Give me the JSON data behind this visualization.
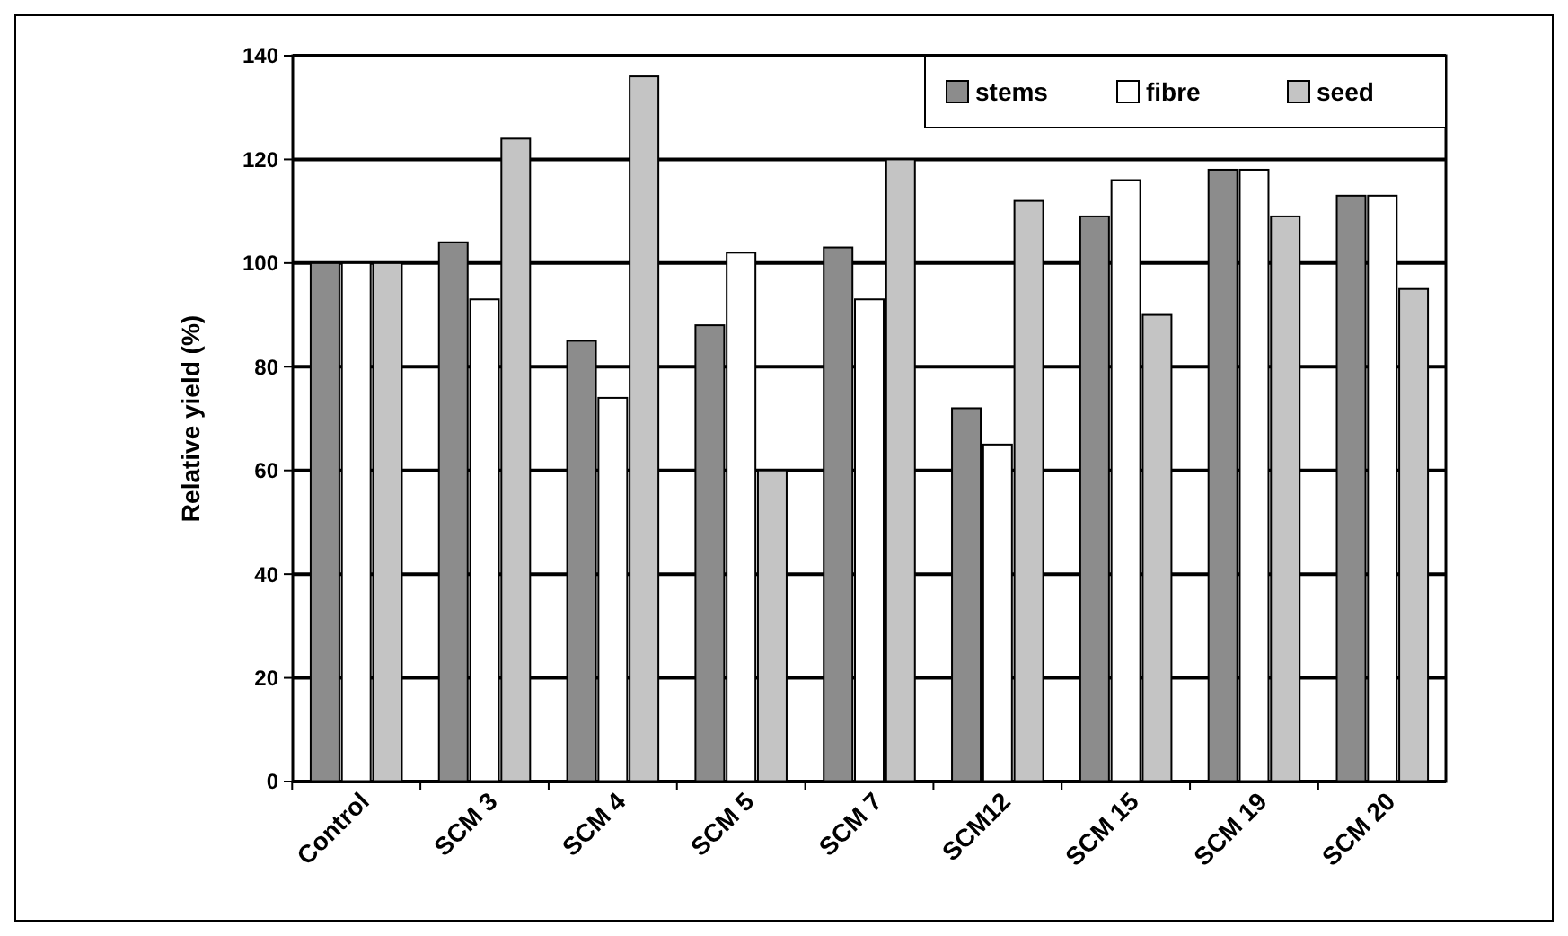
{
  "chart_data": {
    "type": "bar",
    "ylabel": "Relative yield (%)",
    "categories": [
      "Control",
      "SCM 3",
      "SCM 4",
      "SCM 5",
      "SCM 7",
      "SCM12",
      "SCM 15",
      "SCM 19",
      "SCM 20"
    ],
    "series": [
      {
        "name": "stems",
        "color": "#8c8c8c",
        "values": [
          100,
          104,
          85,
          88,
          103,
          72,
          109,
          118,
          113
        ]
      },
      {
        "name": "fibre",
        "color": "#ffffff",
        "values": [
          100,
          93,
          74,
          102,
          93,
          65,
          116,
          118,
          113
        ]
      },
      {
        "name": "seed",
        "color": "#c4c4c4",
        "values": [
          100,
          124,
          136,
          60,
          120,
          112,
          90,
          109,
          95
        ]
      }
    ],
    "ylim": [
      0,
      140
    ],
    "yticks": [
      0,
      20,
      40,
      60,
      80,
      100,
      120,
      140
    ],
    "grid": "y",
    "legend": "top right"
  }
}
